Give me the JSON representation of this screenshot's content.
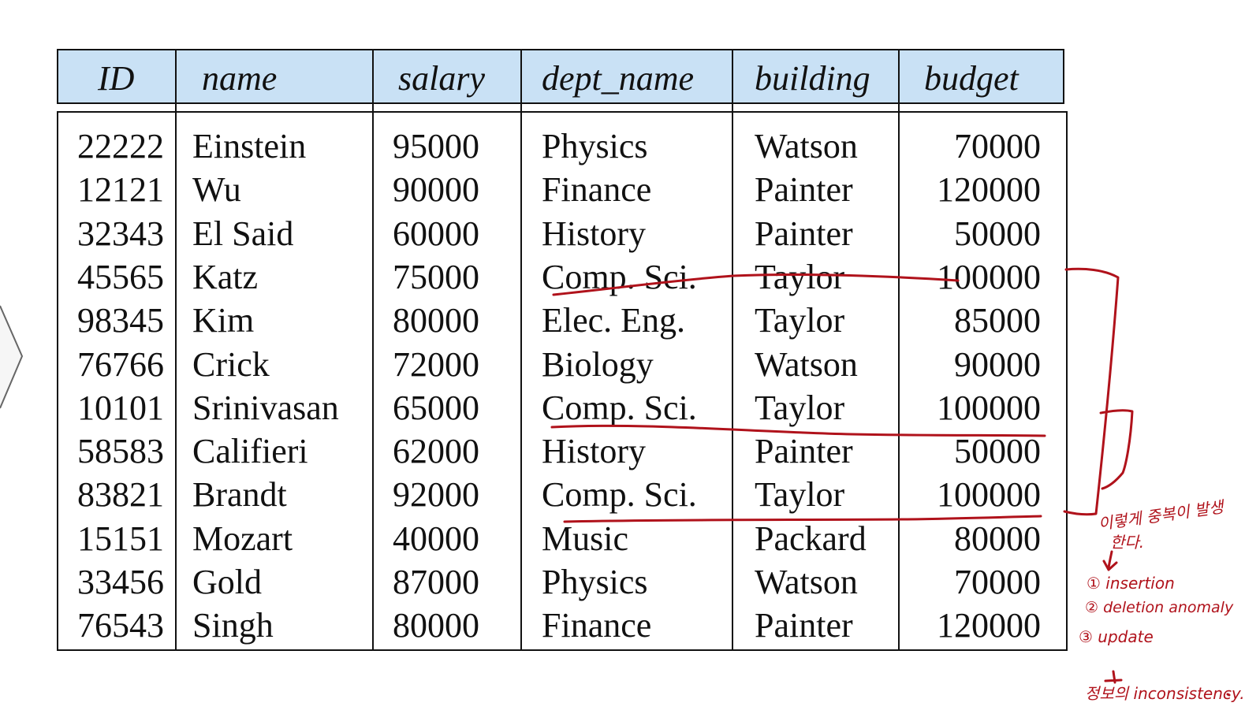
{
  "table": {
    "headers": [
      "ID",
      "name",
      "salary",
      "dept_name",
      "building",
      "budget"
    ],
    "rows": [
      [
        "22222",
        "Einstein",
        "95000",
        "Physics",
        "Watson",
        "70000"
      ],
      [
        "12121",
        "Wu",
        "90000",
        "Finance",
        "Painter",
        "120000"
      ],
      [
        "32343",
        "El Said",
        "60000",
        "History",
        "Painter",
        "50000"
      ],
      [
        "45565",
        "Katz",
        "75000",
        "Comp. Sci.",
        "Taylor",
        "100000"
      ],
      [
        "98345",
        "Kim",
        "80000",
        "Elec. Eng.",
        "Taylor",
        "85000"
      ],
      [
        "76766",
        "Crick",
        "72000",
        "Biology",
        "Watson",
        "90000"
      ],
      [
        "10101",
        "Srinivasan",
        "65000",
        "Comp. Sci.",
        "Taylor",
        "100000"
      ],
      [
        "58583",
        "Califieri",
        "62000",
        "History",
        "Painter",
        "50000"
      ],
      [
        "83821",
        "Brandt",
        "92000",
        "Comp. Sci.",
        "Taylor",
        "100000"
      ],
      [
        "15151",
        "Mozart",
        "40000",
        "Music",
        "Packard",
        "80000"
      ],
      [
        "33456",
        "Gold",
        "87000",
        "Physics",
        "Watson",
        "70000"
      ],
      [
        "76543",
        "Singh",
        "80000",
        "Finance",
        "Painter",
        "120000"
      ]
    ]
  },
  "annotations": {
    "line1": "이렇게 중복이 발생",
    "line2": "한다.",
    "item1": "① insertion",
    "item2": "② deletion anomaly",
    "item3": "③ update",
    "conclusion": "정보의 inconsistency."
  },
  "colors": {
    "header_bg": "#c9e1f5",
    "ink": "#b0121b"
  }
}
